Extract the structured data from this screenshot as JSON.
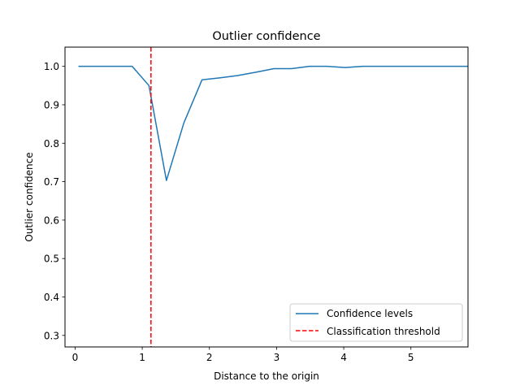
{
  "chart_data": {
    "type": "line",
    "title": "Outlier confidence",
    "xlabel": "Distance to the origin",
    "ylabel": "Outlier confidence",
    "xlim": [
      -0.15,
      5.85
    ],
    "ylim": [
      0.27,
      1.05
    ],
    "xticks": [
      0,
      1,
      2,
      3,
      4,
      5
    ],
    "yticks": [
      0.3,
      0.4,
      0.5,
      0.6,
      0.7,
      0.8,
      0.9,
      1.0
    ],
    "xtick_labels": [
      "0",
      "1",
      "2",
      "3",
      "4",
      "5"
    ],
    "ytick_labels": [
      "0.3",
      "0.4",
      "0.5",
      "0.6",
      "0.7",
      "0.8",
      "0.9",
      "1.0"
    ],
    "grid": false,
    "legend_position": "lower right",
    "series": [
      {
        "name": "Confidence levels",
        "color": "#1f77b4",
        "style": "solid",
        "x": [
          0.05,
          0.32,
          0.58,
          0.85,
          1.1,
          1.36,
          1.62,
          1.89,
          2.15,
          2.42,
          2.7,
          2.96,
          3.22,
          3.49,
          3.75,
          4.02,
          4.28,
          4.55,
          4.82,
          5.08,
          5.35,
          5.61,
          5.88
        ],
        "y": [
          1.0,
          1.0,
          1.0,
          1.0,
          0.95,
          0.703,
          0.853,
          0.965,
          0.97,
          0.976,
          0.985,
          0.994,
          0.994,
          1.0,
          1.0,
          0.997,
          1.0,
          1.0,
          1.0,
          1.0,
          1.0,
          1.0,
          1.0
        ]
      },
      {
        "name": "Classification threshold",
        "color": "#ff0000",
        "style": "dashed",
        "vline_x": 1.13
      }
    ]
  }
}
